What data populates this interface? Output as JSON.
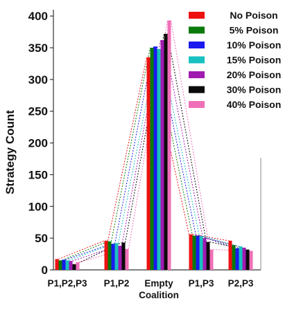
{
  "chart_data": {
    "type": "bar",
    "title": "",
    "xlabel": "",
    "ylabel": "Strategy Count",
    "ylim": [
      0,
      410
    ],
    "yticks": [
      0,
      50,
      100,
      150,
      200,
      250,
      300,
      350,
      400
    ],
    "grid": false,
    "legend_position": "top-right",
    "categories": [
      "P1,P2,P3",
      "P1,P2",
      "Empty\nCoalition",
      "P1,P3",
      "P2,P3"
    ],
    "category_labels": [
      [
        "P1,P2,P3"
      ],
      [
        "P1,P2"
      ],
      [
        "Empty",
        "Coalition"
      ],
      [
        "P1,P3"
      ],
      [
        "P2,P3"
      ]
    ],
    "series": [
      {
        "name": "No Poison",
        "color": "#ee1111",
        "values": [
          17,
          46,
          335,
          56,
          46
        ]
      },
      {
        "name": "5% Poison",
        "color": "#0a7a0a",
        "values": [
          15,
          45,
          350,
          54,
          39
        ]
      },
      {
        "name": "10% Poison",
        "color": "#1a1aee",
        "values": [
          16,
          41,
          352,
          54,
          34
        ]
      },
      {
        "name": "15% Poison",
        "color": "#19c0c0",
        "values": [
          15,
          42,
          348,
          53,
          37
        ]
      },
      {
        "name": "20% Poison",
        "color": "#a01ab0",
        "values": [
          14,
          38,
          362,
          50,
          35
        ]
      },
      {
        "name": "30% Poison",
        "color": "#0a0a0a",
        "values": [
          9,
          43,
          372,
          44,
          32
        ]
      },
      {
        "name": "40% Poison",
        "color": "#f070b8",
        "values": [
          12,
          33,
          393,
          32,
          30
        ]
      }
    ],
    "annotations": "dotted connector lines join each series' bar tops between adjacent categories"
  }
}
